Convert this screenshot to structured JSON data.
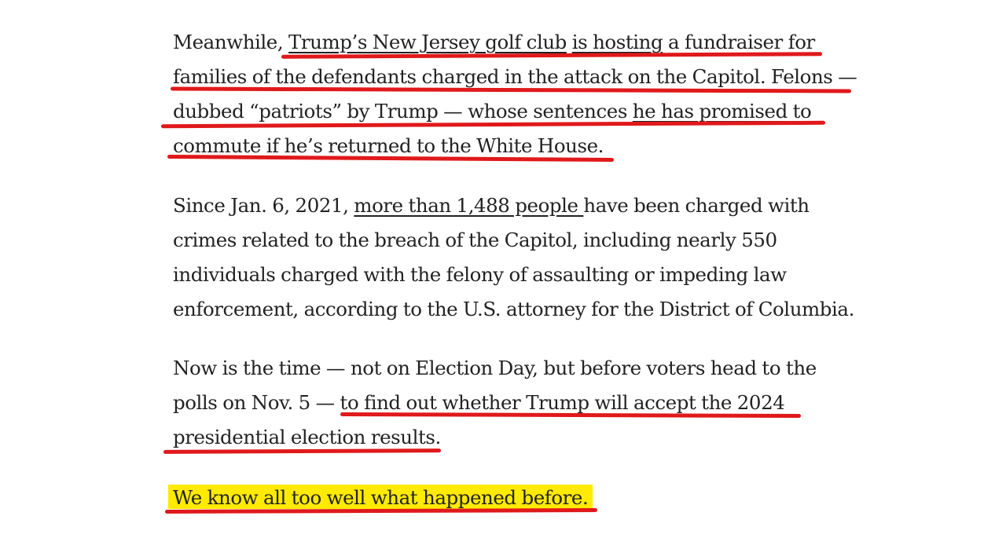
{
  "article": {
    "paragraphs": [
      {
        "lines": [
          {
            "pre": "Meanwhile, ",
            "link1": "Trump’s New Jersey golf club",
            "mid": " ",
            "link2": "is hosting",
            "post": " a fundraiser for"
          },
          {
            "text": "families of the defendants charged in the attack on the Capitol. Felons —"
          },
          {
            "pre": "dubbed “patriots” by Trump — whose sentences ",
            "link": "he has promised to"
          },
          {
            "link": "commute",
            "post": " if he’s returned to the White House."
          }
        ]
      },
      {
        "lines": [
          {
            "pre": "Since Jan. 6, 2021, ",
            "link": "more than 1,488 people ",
            "post": "have been charged with"
          },
          {
            "text": "crimes related to the breach of the Capitol, including nearly 550"
          },
          {
            "text": "individuals charged with the felony of assaulting or impeding law"
          },
          {
            "text": "enforcement, according to the U.S. attorney for the District of Columbia."
          }
        ]
      },
      {
        "lines": [
          {
            "text": "Now is the time — not on Election Day, but before voters head to the"
          },
          {
            "text": "polls on Nov. 5 — to find out whether Trump will accept the 2024"
          },
          {
            "text": "presidential election results."
          }
        ]
      },
      {
        "lines": [
          {
            "text": "We know all too well what happened before."
          }
        ]
      }
    ]
  },
  "colors": {
    "text": "#222222",
    "annotation_underline": "#e0191b",
    "highlight": "#ffea00"
  }
}
